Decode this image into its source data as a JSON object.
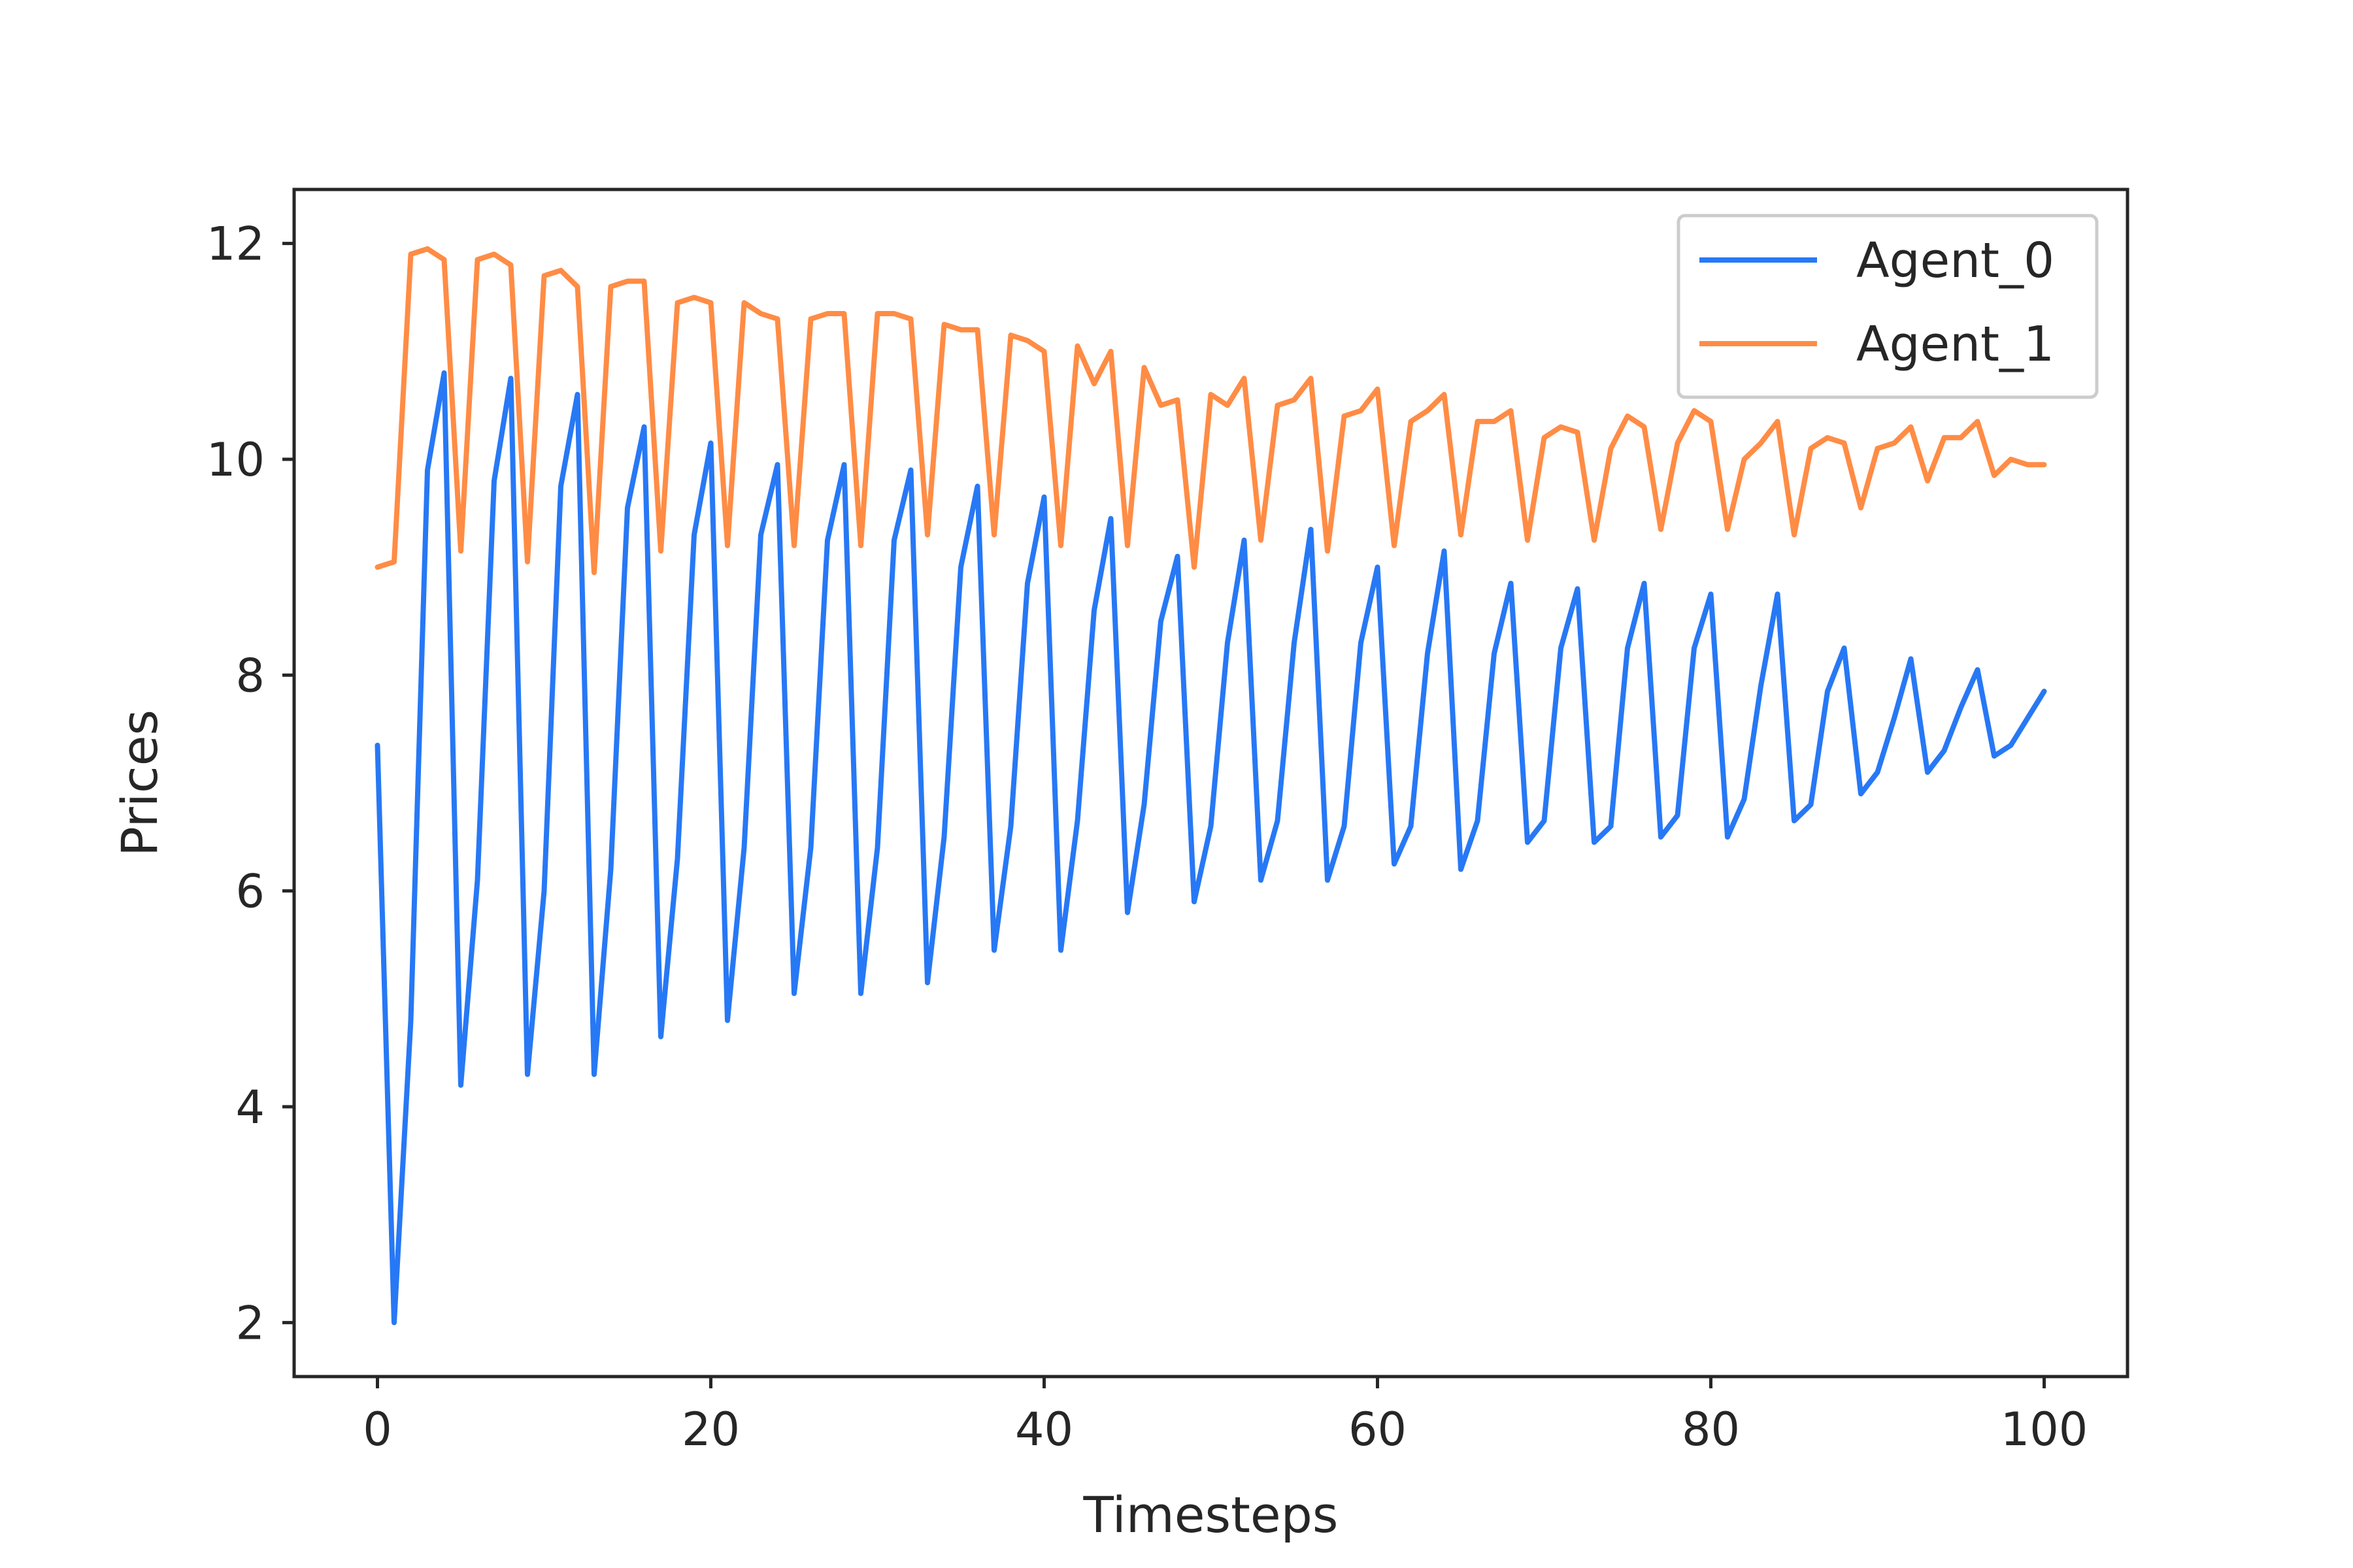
{
  "chart_data": {
    "type": "line",
    "title": "",
    "xlabel": "Timesteps",
    "ylabel": "Prices",
    "xlim": [
      -5,
      105
    ],
    "ylim": [
      1.5,
      12.5
    ],
    "xticks": [
      0,
      20,
      40,
      60,
      80,
      100
    ],
    "xtick_labels": [
      "0",
      "20",
      "40",
      "60",
      "80",
      "100"
    ],
    "yticks": [
      2,
      4,
      6,
      8,
      10,
      12
    ],
    "ytick_labels": [
      "2",
      "4",
      "6",
      "8",
      "10",
      "12"
    ],
    "grid": false,
    "legend_position": "upper right",
    "x": [
      0,
      1,
      2,
      3,
      4,
      5,
      6,
      7,
      8,
      9,
      10,
      11,
      12,
      13,
      14,
      15,
      16,
      17,
      18,
      19,
      20,
      21,
      22,
      23,
      24,
      25,
      26,
      27,
      28,
      29,
      30,
      31,
      32,
      33,
      34,
      35,
      36,
      37,
      38,
      39,
      40,
      41,
      42,
      43,
      44,
      45,
      46,
      47,
      48,
      49,
      50,
      51,
      52,
      53,
      54,
      55,
      56,
      57,
      58,
      59,
      60,
      61,
      62,
      63,
      64,
      65,
      66,
      67,
      68,
      69,
      70,
      71,
      72,
      73,
      74,
      75,
      76,
      77,
      78,
      79,
      80,
      81,
      82,
      83,
      84,
      85,
      86,
      87,
      88,
      89,
      90,
      91,
      92,
      93,
      94,
      95,
      96,
      97,
      98,
      99,
      100
    ],
    "series": [
      {
        "name": "Agent_0",
        "color": "#2778f5",
        "values": [
          7.35,
          2.0,
          4.8,
          9.9,
          10.8,
          4.2,
          6.1,
          9.8,
          10.75,
          4.3,
          6.0,
          9.75,
          10.6,
          4.3,
          6.2,
          9.55,
          10.3,
          4.65,
          6.3,
          9.3,
          10.15,
          4.8,
          6.4,
          9.3,
          9.95,
          5.05,
          6.4,
          9.25,
          9.95,
          5.05,
          6.4,
          9.25,
          9.9,
          5.15,
          6.5,
          9.0,
          9.75,
          5.45,
          6.6,
          8.85,
          9.65,
          5.45,
          6.65,
          8.6,
          9.45,
          5.8,
          6.8,
          8.5,
          9.1,
          5.9,
          6.6,
          8.3,
          9.25,
          6.1,
          6.65,
          8.3,
          9.35,
          6.1,
          6.6,
          8.3,
          9.0,
          6.25,
          6.6,
          8.2,
          9.15,
          6.2,
          6.65,
          8.2,
          8.85,
          6.45,
          6.65,
          8.25,
          8.8,
          6.45,
          6.6,
          8.25,
          8.85,
          6.5,
          6.7,
          8.25,
          8.75,
          6.5,
          6.85,
          7.9,
          8.75,
          6.65,
          6.8,
          7.85,
          8.25,
          6.9,
          7.1,
          7.6,
          8.15,
          7.1,
          7.3,
          7.7,
          8.05,
          7.25,
          7.35,
          7.6,
          7.85
        ]
      },
      {
        "name": "Agent_1",
        "color": "#ff8c45",
        "values": [
          9.0,
          9.05,
          11.9,
          11.95,
          11.85,
          9.15,
          11.85,
          11.9,
          11.8,
          9.05,
          11.7,
          11.75,
          11.6,
          8.95,
          11.6,
          11.65,
          11.65,
          9.15,
          11.45,
          11.5,
          11.45,
          9.2,
          11.45,
          11.35,
          11.3,
          9.2,
          11.3,
          11.35,
          11.35,
          9.2,
          11.35,
          11.35,
          11.3,
          9.3,
          11.25,
          11.2,
          11.2,
          9.3,
          11.15,
          11.1,
          11.0,
          9.2,
          11.05,
          10.7,
          11.0,
          9.2,
          10.85,
          10.5,
          10.55,
          9.0,
          10.6,
          10.5,
          10.75,
          9.25,
          10.5,
          10.55,
          10.75,
          9.15,
          10.4,
          10.45,
          10.65,
          9.2,
          10.35,
          10.45,
          10.6,
          9.3,
          10.35,
          10.35,
          10.45,
          9.25,
          10.2,
          10.3,
          10.25,
          9.25,
          10.1,
          10.4,
          10.3,
          9.35,
          10.15,
          10.45,
          10.35,
          9.35,
          10.0,
          10.15,
          10.35,
          9.3,
          10.1,
          10.2,
          10.15,
          9.55,
          10.1,
          10.15,
          10.3,
          9.8,
          10.2,
          10.2,
          10.35,
          9.85,
          10.0,
          9.95,
          9.95
        ]
      }
    ]
  }
}
